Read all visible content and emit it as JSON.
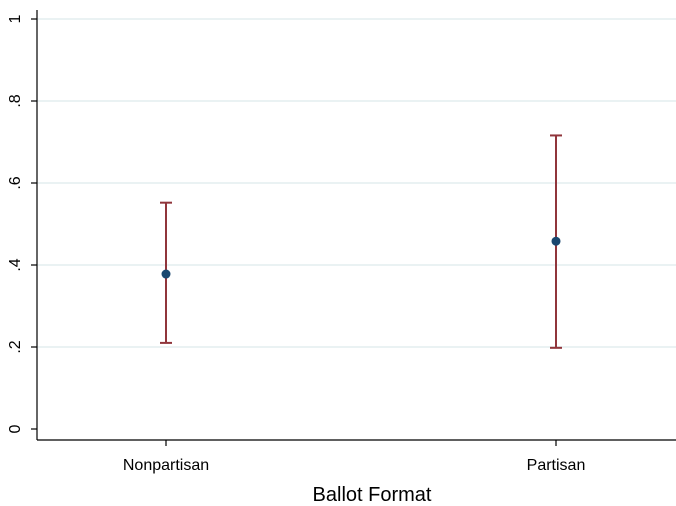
{
  "chart_data": {
    "type": "scatter",
    "title": "",
    "xlabel": "Ballot Format",
    "ylabel": "",
    "categories": [
      "Nonpartisan",
      "Partisan"
    ],
    "series": [
      {
        "values": [
          0.378,
          0.458
        ],
        "ci_low": [
          0.21,
          0.198
        ],
        "ci_high": [
          0.552,
          0.716
        ]
      }
    ],
    "ylim": [
      0,
      1
    ],
    "yticks": [
      0,
      0.2,
      0.4,
      0.6,
      0.8,
      1
    ],
    "ytick_labels": [
      "0",
      ".2",
      ".4",
      ".6",
      ".8",
      "1"
    ],
    "grid": true,
    "legend": "none",
    "colors": {
      "point": "#1a476f",
      "errorbar": "#90353b",
      "grid": "#eaf2f3",
      "axis": "#000000"
    }
  }
}
